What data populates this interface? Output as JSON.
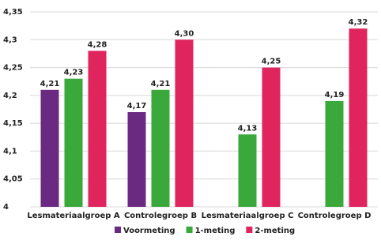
{
  "chart_data": {
    "type": "bar",
    "categories": [
      "Lesmateriaalgroep A",
      "Controlegroep B",
      "Lesmateriaalgroep C",
      "Controlegroep D"
    ],
    "series": [
      {
        "name": "Voormeting",
        "color": "#6b2a82",
        "values": [
          4.21,
          4.17,
          null,
          null
        ],
        "value_labels": [
          "4,21",
          "4,17",
          null,
          null
        ]
      },
      {
        "name": "1-meting",
        "color": "#3aa83a",
        "values": [
          4.23,
          4.21,
          4.13,
          4.19
        ],
        "value_labels": [
          "4,23",
          "4,21",
          "4,13",
          "4,19"
        ]
      },
      {
        "name": "2-meting",
        "color": "#e0245e",
        "values": [
          4.28,
          4.3,
          4.25,
          4.32
        ],
        "value_labels": [
          "4,28",
          "4,30",
          "4,25",
          "4,32"
        ]
      }
    ],
    "ylim": [
      4,
      4.35
    ],
    "yticks": [
      4,
      {
        "value": 4.05,
        "label": "4,05"
      },
      {
        "value": 4.1,
        "label": "4,1"
      },
      {
        "value": 4.15,
        "label": "4,15"
      },
      {
        "value": 4.2,
        "label": "4,2"
      },
      {
        "value": 4.25,
        "label": "4,25"
      },
      {
        "value": 4.3,
        "label": "4,3"
      },
      {
        "value": 4.35,
        "label": "4,35"
      }
    ],
    "grid": true,
    "legend": "bottom"
  }
}
